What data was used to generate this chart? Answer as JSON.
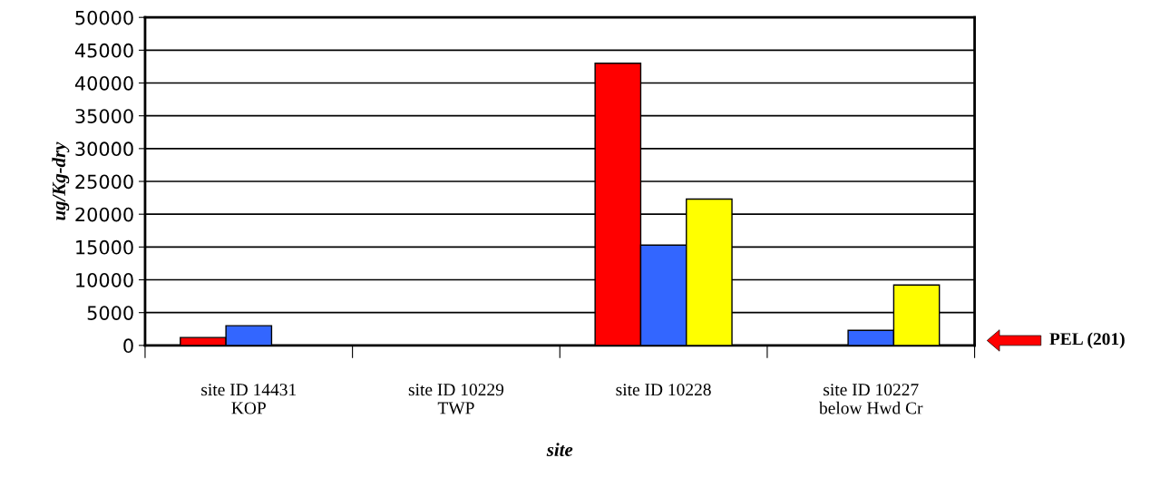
{
  "chart_data": {
    "type": "bar",
    "xlabel": "site",
    "ylabel": "ug/Kg-dry",
    "categories": [
      "site ID 14431\nKOP",
      "site ID 10229\nTWP",
      "site ID 10228",
      "site ID 10227\nbelow Hwd Cr"
    ],
    "series": [
      {
        "color": "#ff0000",
        "values": [
          1200,
          null,
          43000,
          null
        ]
      },
      {
        "color": "#3366ff",
        "values": [
          3000,
          null,
          15300,
          2300
        ]
      },
      {
        "color": "#ffff00",
        "values": [
          null,
          null,
          22300,
          9200
        ]
      }
    ],
    "ylim": [
      0,
      50000
    ],
    "yticks": [
      0,
      5000,
      10000,
      15000,
      20000,
      25000,
      30000,
      35000,
      40000,
      45000,
      50000
    ],
    "grid": "y",
    "annotations": [
      "PEL (201)"
    ]
  }
}
